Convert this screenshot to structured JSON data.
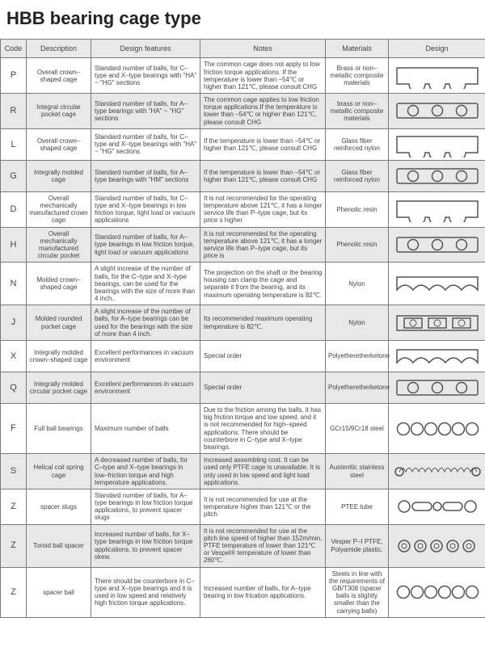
{
  "title": "HBB bearing cage type",
  "headers": [
    "Code",
    "Description",
    "Design features",
    "Notes",
    "Materials",
    "Design"
  ],
  "colors": {
    "border": "#7a7a7a",
    "altRow": "#e8e8e8",
    "text": "#444",
    "stroke": "#555"
  },
  "rows": [
    {
      "code": "P",
      "desc": "Overall crown–shaped cage",
      "feat": "Standard number of balls, for C–type and X–type bearings with \"HA\" ~ \"HG\" sections",
      "notes": "The common cage does not apply to low friction torque applications. If the temperature is lower than –54℃ or higher than 121℃, please consult CHG",
      "mat": "Brass or non–metallic composite materials",
      "design": "crown-open"
    },
    {
      "code": "R",
      "desc": "Integral circular pocket cage",
      "feat": "Standard number of balls, for A–type bearings with \"HA\" ~ \"HG\" sections",
      "notes": "The common cage applies to low friction torque applications.If the temperature is lower than –54℃ or higher than 121℃, please consult CHG",
      "mat": "brass or non–metallic composite materials",
      "design": "rect-holes"
    },
    {
      "code": "L",
      "desc": "Overall crown–shaped cage",
      "feat": "Standard number of balls, for C–type and X–type bearings with \"HA\" ~ \"HG\" sections",
      "notes": "If the temperature is lower than –54℃ or higher than 121℃, please consult CHG",
      "mat": "Glass fiber reinforced nylon",
      "design": "crown-open"
    },
    {
      "code": "G",
      "desc": "Integrally molded cage",
      "feat": "Standard number of balls, for A–type bearings with \"HM\" sections",
      "notes": "If the temperature is lower than –54℃ or higher than 121℃, please consult CHG",
      "mat": "Glass fiber reinforced nylon",
      "design": "rect-holes"
    },
    {
      "code": "D",
      "desc": "Overall mechanically manufactured crown cage",
      "feat": "Standard number of balls, for C–type and X–type bearings in low friction torque, light load or vacuum applications",
      "notes": "It is not recommended for the operating temperature above 121℃, it has a longer service life than P–type cage, but its price s higher",
      "mat": "Phenolic resin",
      "design": "crown-open"
    },
    {
      "code": "H",
      "desc": "Overall mechanically manufactured circular pocket",
      "feat": "Standard number of balls, for A–type bearings in low friction torque, light load or vacuum applications",
      "notes": "It is not recommended for the operating temperature above 121℃, it has a longer service life than P–type cage, but its price is",
      "mat": "Phenolic resin",
      "design": "rect-holes"
    },
    {
      "code": "N",
      "desc": "Molded crown–shaped cage",
      "feat": "A slight increase of the number of balls, for the C–type and X–type bearings, can be used for the bearings with the size of more than 4 inch..",
      "notes": "The projection on the shaft or the bearing housing can clamp the cage and separate it from the bearing, and its maximum operating temperature is 82℃.",
      "mat": "Nylon",
      "design": "crown-rounded"
    },
    {
      "code": "J",
      "desc": "Molded rounded pocket cage",
      "feat": "A slight increase of the number of balls, for A–type bearings can be used for the bearings with the size of more than 4 inch.",
      "notes": "Its recommended maximum operating temperature is 82℃.",
      "mat": "Nylon",
      "design": "rect-squares"
    },
    {
      "code": "X",
      "desc": "Integrally molded crown–shaped cage",
      "feat": "Excellent performances in vacuum environment",
      "notes": "Special order",
      "mat": "Polyetheretherketone",
      "design": "crown-rounded"
    },
    {
      "code": "Q",
      "desc": "Integrally molded circular pocket cage",
      "feat": "Excellent performances in vacuum environment",
      "notes": "Special order",
      "mat": "Polyetheretherketone",
      "design": "rect-holes"
    },
    {
      "code": "F",
      "desc": "Full ball bearings",
      "feat": "Maximum number of balls",
      "notes": "Due to the friction among the balls, it has big friction torque and low speed, and it is not recommended for high–speed applications. There should be counterbore in C–type and X–type bearings.",
      "mat": "GCr15/9Cr18 steel",
      "design": "balls-row"
    },
    {
      "code": "S",
      "desc": "Helical coil spring cage",
      "feat": "A decreased number of balls, for C–type and X–type bearings in low–friction torque and high temperature applications.",
      "notes": "Increased assembling cost. It can be used only PTFE cage is unavailable. It is only used in low speed and light load applications.",
      "mat": "Austenitic stainless steel",
      "design": "spring"
    },
    {
      "code": "Z",
      "desc": "spacer slugs",
      "feat": "Standard number of balls, for A–type bearings in low friction torque applications, to prevent spacer slugs",
      "notes": "It is not recommended for use at the temperature higher than 121℃ or the pitch",
      "mat": "PTEE tube",
      "design": "slugs"
    },
    {
      "code": "Z",
      "desc": "Toroid ball spacer",
      "feat": "Increased number of balls, for X–type bearings in low friction torque applications, to prevent spacer skew.",
      "notes": "It is not recommended for use at the pitch line speed of higher than 152m/min, PTFE temperature of lower than 121℃ or Vespel® temperature of lower than 260℃.",
      "mat": "Vesper P–I PTFE, Polyamide plastic.",
      "design": "toroid"
    },
    {
      "code": "Z",
      "desc": "spacer ball",
      "feat": "There should be counterbore in C–type and X–type bearings and it is used in low speed and relatively high friction torque applications.",
      "notes": "Increased number of balls, for A–type bearing in low frication applications.",
      "mat": "Steels in line with the requirements of GB/T308 (spacer balls is slightly smaller than the carrying balls)",
      "design": "balls-row"
    }
  ]
}
